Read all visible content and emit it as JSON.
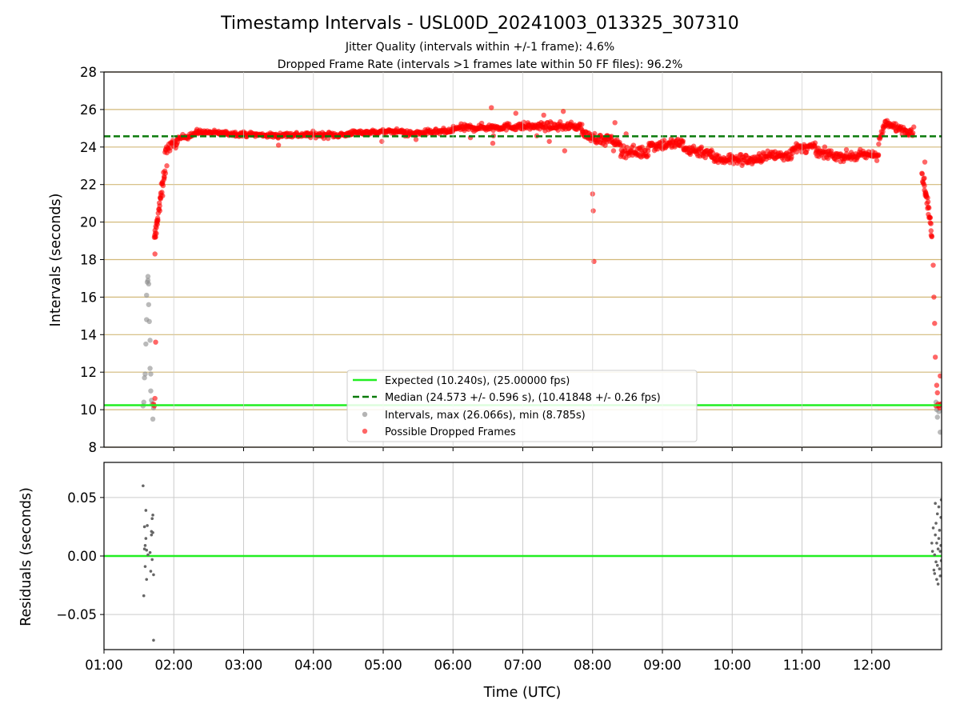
{
  "chart_data": [
    {
      "type": "scatter",
      "title": "Timestamp Intervals - USL00D_20241003_013325_307310",
      "subtitle_lines": [
        "Jitter Quality (intervals within +/-1 frame): 4.6%",
        "Dropped Frame Rate (intervals >1 frames late within 50 FF files): 96.2%"
      ],
      "xlabel": "",
      "ylabel": "Intervals (seconds)",
      "xlim_hours": [
        1.0,
        13.0
      ],
      "ylim": [
        8,
        28
      ],
      "yticks": [
        8,
        10,
        12,
        14,
        16,
        18,
        20,
        22,
        24,
        26,
        28
      ],
      "grid": true,
      "legend_position": "lower-center",
      "colors": {
        "expected": "#22ee22",
        "median": "#0a7a0a",
        "intervals": "#8c8c8c",
        "dropped": "#ff0000",
        "hgrid": "#d2b97a"
      },
      "expected_value": 10.24,
      "median_value": 24.573,
      "legend": [
        "Expected (10.240s), (25.00000 fps)",
        "Median (24.573 +/- 0.596 s), (10.41848 +/- 0.26 fps)",
        "Intervals, max (26.066s), min (8.785s)",
        "Possible Dropped Frames"
      ],
      "series": [
        {
          "name": "Intervals, max (26.066s), min (8.785s)",
          "points": [
            [
              1.56,
              10.2
            ],
            [
              1.57,
              10.4
            ],
            [
              1.58,
              11.7
            ],
            [
              1.59,
              11.9
            ],
            [
              1.6,
              13.5
            ],
            [
              1.61,
              14.8
            ],
            [
              1.61,
              16.1
            ],
            [
              1.62,
              16.8
            ],
            [
              1.63,
              17.1
            ],
            [
              1.63,
              16.9
            ],
            [
              1.64,
              16.7
            ],
            [
              1.64,
              15.6
            ],
            [
              1.65,
              14.7
            ],
            [
              1.66,
              13.7
            ],
            [
              1.66,
              12.2
            ],
            [
              1.67,
              11.9
            ],
            [
              1.67,
              11.0
            ],
            [
              1.68,
              10.5
            ],
            [
              1.69,
              10.3
            ],
            [
              1.7,
              9.5
            ],
            [
              1.71,
              10.1
            ],
            [
              12.92,
              10.4
            ],
            [
              12.93,
              10.0
            ],
            [
              12.94,
              9.6
            ],
            [
              12.95,
              10.2
            ],
            [
              12.96,
              9.9
            ],
            [
              12.98,
              8.8
            ],
            [
              12.99,
              10.3
            ]
          ]
        },
        {
          "name": "Possible Dropped Frames",
          "segments": [
            {
              "t0": 1.72,
              "t1": 1.87,
              "v0": 19.0,
              "v1": 22.8,
              "n": 34,
              "noise": 0.35
            },
            {
              "t0": 1.87,
              "t1": 2.05,
              "v0": 23.8,
              "v1": 24.3,
              "n": 22,
              "noise": 0.25
            },
            {
              "t0": 2.05,
              "t1": 2.35,
              "v0": 24.4,
              "v1": 24.8,
              "n": 34,
              "noise": 0.15
            },
            {
              "t0": 2.35,
              "t1": 3.5,
              "v0": 24.8,
              "v1": 24.6,
              "n": 140,
              "noise": 0.12
            },
            {
              "t0": 3.5,
              "t1": 4.5,
              "v0": 24.65,
              "v1": 24.65,
              "n": 120,
              "noise": 0.15
            },
            {
              "t0": 4.5,
              "t1": 5.3,
              "v0": 24.75,
              "v1": 24.85,
              "n": 100,
              "noise": 0.12
            },
            {
              "t0": 5.3,
              "t1": 6.0,
              "v0": 24.7,
              "v1": 24.85,
              "n": 80,
              "noise": 0.15
            },
            {
              "t0": 6.0,
              "t1": 7.0,
              "v0": 25.0,
              "v1": 25.1,
              "n": 120,
              "noise": 0.18
            },
            {
              "t0": 7.0,
              "t1": 7.85,
              "v0": 25.1,
              "v1": 25.1,
              "n": 100,
              "noise": 0.2
            },
            {
              "t0": 7.85,
              "t1": 8.2,
              "v0": 24.7,
              "v1": 24.3,
              "n": 42,
              "noise": 0.25
            },
            {
              "t0": 8.2,
              "t1": 8.4,
              "v0": 24.5,
              "v1": 24.1,
              "n": 24,
              "noise": 0.2
            },
            {
              "t0": 8.4,
              "t1": 8.8,
              "v0": 23.8,
              "v1": 23.7,
              "n": 48,
              "noise": 0.3
            },
            {
              "t0": 8.8,
              "t1": 9.3,
              "v0": 24.1,
              "v1": 24.2,
              "n": 60,
              "noise": 0.3
            },
            {
              "t0": 9.3,
              "t1": 9.7,
              "v0": 23.9,
              "v1": 23.7,
              "n": 48,
              "noise": 0.3
            },
            {
              "t0": 9.7,
              "t1": 10.4,
              "v0": 23.4,
              "v1": 23.3,
              "n": 84,
              "noise": 0.3
            },
            {
              "t0": 10.4,
              "t1": 10.85,
              "v0": 23.5,
              "v1": 23.6,
              "n": 54,
              "noise": 0.3
            },
            {
              "t0": 10.85,
              "t1": 11.2,
              "v0": 23.9,
              "v1": 24.0,
              "n": 42,
              "noise": 0.25
            },
            {
              "t0": 11.2,
              "t1": 11.6,
              "v0": 23.7,
              "v1": 23.5,
              "n": 48,
              "noise": 0.25
            },
            {
              "t0": 11.6,
              "t1": 12.1,
              "v0": 23.5,
              "v1": 23.6,
              "n": 60,
              "noise": 0.25
            },
            {
              "t0": 12.1,
              "t1": 12.2,
              "v0": 24.3,
              "v1": 25.3,
              "n": 14,
              "noise": 0.2
            },
            {
              "t0": 12.2,
              "t1": 12.6,
              "v0": 25.2,
              "v1": 24.8,
              "n": 48,
              "noise": 0.22
            },
            {
              "t0": 12.72,
              "t1": 12.86,
              "v0": 22.7,
              "v1": 19.5,
              "n": 30,
              "noise": 0.35
            }
          ],
          "points": [
            [
              1.72,
              10.2
            ],
            [
              1.73,
              10.6
            ],
            [
              1.71,
              10.3
            ],
            [
              1.74,
              13.6
            ],
            [
              1.73,
              18.3
            ],
            [
              1.74,
              19.2
            ],
            [
              1.75,
              19.7
            ],
            [
              1.76,
              20.0
            ],
            [
              1.8,
              20.6
            ],
            [
              1.84,
              21.4
            ],
            [
              1.88,
              22.6
            ],
            [
              1.9,
              23.0
            ],
            [
              3.5,
              24.1
            ],
            [
              4.98,
              24.3
            ],
            [
              5.47,
              24.4
            ],
            [
              6.25,
              24.5
            ],
            [
              6.55,
              26.1
            ],
            [
              6.57,
              24.2
            ],
            [
              6.58,
              24.6
            ],
            [
              6.9,
              25.8
            ],
            [
              7.2,
              24.6
            ],
            [
              7.3,
              25.7
            ],
            [
              7.38,
              24.3
            ],
            [
              7.58,
              25.9
            ],
            [
              7.6,
              23.8
            ],
            [
              8.0,
              21.5
            ],
            [
              8.01,
              20.6
            ],
            [
              8.02,
              17.9
            ],
            [
              8.3,
              23.8
            ],
            [
              8.32,
              25.3
            ],
            [
              8.48,
              24.7
            ],
            [
              12.76,
              23.2
            ],
            [
              12.78,
              21.4
            ],
            [
              12.8,
              21.3
            ],
            [
              12.85,
              19.3
            ],
            [
              12.88,
              17.7
            ],
            [
              12.89,
              16.0
            ],
            [
              12.9,
              14.6
            ],
            [
              12.91,
              12.8
            ],
            [
              12.93,
              11.3
            ],
            [
              12.94,
              10.9
            ],
            [
              12.96,
              10.2
            ],
            [
              12.97,
              10.1
            ],
            [
              12.98,
              11.8
            ],
            [
              12.99,
              10.3
            ],
            [
              12.95,
              10.3
            ],
            [
              12.92,
              10.2
            ]
          ]
        }
      ]
    },
    {
      "type": "scatter",
      "title": "",
      "xlabel": "Time (UTC)",
      "ylabel": "Residuals (seconds)",
      "xlim_hours": [
        1.0,
        13.0
      ],
      "ylim": [
        -0.08,
        0.08
      ],
      "yticks": [
        -0.05,
        0.0,
        0.05
      ],
      "ytick_labels": [
        "−0.05",
        "0.00",
        "0.05"
      ],
      "xtick_labels": [
        "01:00",
        "02:00",
        "03:00",
        "04:00",
        "05:00",
        "06:00",
        "07:00",
        "08:00",
        "09:00",
        "10:00",
        "11:00",
        "12:00"
      ],
      "grid": true,
      "zero_line_color": "#22ee22",
      "series": [
        {
          "name": "",
          "color": "#666666",
          "points": [
            [
              1.56,
              0.06
            ],
            [
              1.57,
              -0.034
            ],
            [
              1.58,
              0.025
            ],
            [
              1.58,
              0.006
            ],
            [
              1.59,
              0.009
            ],
            [
              1.59,
              -0.009
            ],
            [
              1.6,
              0.039
            ],
            [
              1.6,
              0.015
            ],
            [
              1.61,
              0.005
            ],
            [
              1.61,
              -0.02
            ],
            [
              1.62,
              0.026
            ],
            [
              1.63,
              0.001
            ],
            [
              1.66,
              0.003
            ],
            [
              1.67,
              -0.013
            ],
            [
              1.68,
              0.021
            ],
            [
              1.68,
              0.018
            ],
            [
              1.69,
              0.032
            ],
            [
              1.69,
              -0.003
            ],
            [
              1.7,
              0.035
            ],
            [
              1.7,
              0.02
            ],
            [
              1.71,
              -0.016
            ],
            [
              1.71,
              -0.072
            ],
            [
              12.86,
              0.011
            ],
            [
              12.87,
              0.004
            ],
            [
              12.88,
              0.024
            ],
            [
              12.89,
              -0.012
            ],
            [
              12.9,
              0.001
            ],
            [
              12.9,
              -0.015
            ],
            [
              12.91,
              0.018
            ],
            [
              12.91,
              0.045
            ],
            [
              12.92,
              -0.005
            ],
            [
              12.92,
              0.028
            ],
            [
              12.93,
              -0.02
            ],
            [
              12.93,
              0.011
            ],
            [
              12.94,
              0.036
            ],
            [
              12.94,
              -0.008
            ],
            [
              12.95,
              0.006
            ],
            [
              12.95,
              -0.024
            ],
            [
              12.96,
              0.042
            ],
            [
              12.96,
              0.015
            ],
            [
              12.97,
              -0.011
            ],
            [
              12.97,
              0.022
            ],
            [
              12.98,
              0.004
            ],
            [
              12.98,
              -0.017
            ],
            [
              12.99,
              0.033
            ],
            [
              12.99,
              0.009
            ],
            [
              12.995,
              0.048
            ],
            [
              12.995,
              -0.004
            ]
          ]
        }
      ]
    }
  ]
}
